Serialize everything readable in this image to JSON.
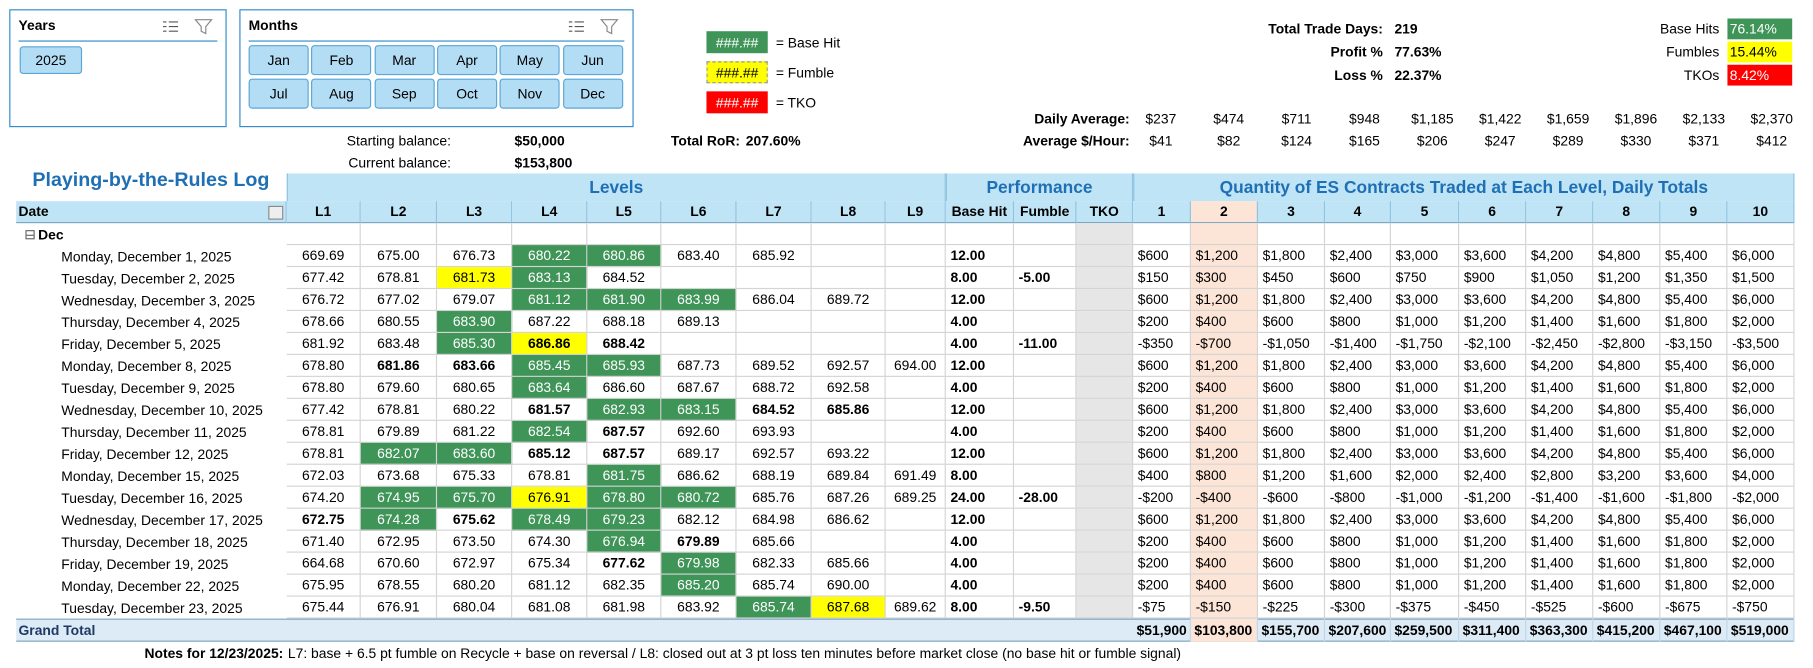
{
  "slicers": {
    "years": {
      "title": "Years",
      "items": [
        "2025"
      ]
    },
    "months": {
      "title": "Months",
      "items": [
        "Jan",
        "Feb",
        "Mar",
        "Apr",
        "May",
        "Jun",
        "Jul",
        "Aug",
        "Sep",
        "Oct",
        "Nov",
        "Dec"
      ]
    }
  },
  "legend": [
    {
      "sample": "###.##",
      "label": "= Base Hit"
    },
    {
      "sample": "###.##",
      "label": "= Fumble"
    },
    {
      "sample": "###.##",
      "label": "= TKO"
    }
  ],
  "balances": {
    "starting_label": "Starting balance:",
    "starting": "$50,000",
    "current_label": "Current balance:",
    "current": "$153,800",
    "ror_label": "Total RoR:",
    "ror": "207.60%"
  },
  "stats": [
    [
      "Total Trade Days:",
      "219"
    ],
    [
      "Profit %",
      "77.63%"
    ],
    [
      "Loss %",
      "22.37%"
    ]
  ],
  "rates": [
    [
      "Base Hits",
      "76.14%"
    ],
    [
      "Fumbles",
      "15.44%"
    ],
    [
      "TKOs",
      "8.42%"
    ]
  ],
  "averages": [
    {
      "label": "Daily Average:",
      "values": [
        "$237",
        "$474",
        "$711",
        "$948",
        "$1,185",
        "$1,422",
        "$1,659",
        "$1,896",
        "$2,133",
        "$2,370"
      ]
    },
    {
      "label": "Average $/Hour:",
      "values": [
        "$41",
        "$82",
        "$124",
        "$165",
        "$206",
        "$247",
        "$289",
        "$330",
        "$371",
        "$412"
      ]
    }
  ],
  "table": {
    "title": "Playing-by-the-Rules Log",
    "groups": [
      "Levels",
      "Performance",
      "Quantity of ES Contracts Traded at Each Level, Daily Totals"
    ],
    "columns": [
      "Date",
      "L1",
      "L2",
      "L3",
      "L4",
      "L5",
      "L6",
      "L7",
      "L8",
      "L9",
      "Base Hit",
      "Fumble",
      "TKO",
      "1",
      "2",
      "3",
      "4",
      "5",
      "6",
      "7",
      "8",
      "9",
      "10"
    ],
    "group_row": "Dec",
    "rows": [
      [
        "Monday, December 1, 2025",
        "669.69",
        "675.00",
        "676.73",
        "680.22",
        "680.86",
        "683.40",
        "685.92",
        null,
        null,
        "12.00",
        null,
        null,
        "$600",
        "$1,200",
        "$1,800",
        "$2,400",
        "$3,000",
        "$3,600",
        "$4,200",
        "$4,800",
        "$5,400",
        "$6,000"
      ],
      [
        "Tuesday, December 2, 2025",
        "677.42",
        "678.81",
        "681.73",
        "683.13",
        "684.52",
        null,
        null,
        null,
        null,
        "8.00",
        "-5.00",
        null,
        "$150",
        "$300",
        "$450",
        "$600",
        "$750",
        "$900",
        "$1,050",
        "$1,200",
        "$1,350",
        "$1,500"
      ],
      [
        "Wednesday, December 3, 2025",
        "676.72",
        "677.02",
        "679.07",
        "681.12",
        "681.90",
        "683.99",
        "686.04",
        "689.72",
        null,
        "12.00",
        null,
        null,
        "$600",
        "$1,200",
        "$1,800",
        "$2,400",
        "$3,000",
        "$3,600",
        "$4,200",
        "$4,800",
        "$5,400",
        "$6,000"
      ],
      [
        "Thursday, December 4, 2025",
        "678.66",
        "680.55",
        "683.90",
        "687.22",
        "688.18",
        "689.13",
        null,
        null,
        null,
        "4.00",
        null,
        null,
        "$200",
        "$400",
        "$600",
        "$800",
        "$1,000",
        "$1,200",
        "$1,400",
        "$1,600",
        "$1,800",
        "$2,000"
      ],
      [
        "Friday, December 5, 2025",
        "681.92",
        "683.48",
        "685.30",
        "686.86",
        "688.42",
        null,
        null,
        null,
        null,
        "4.00",
        "-11.00",
        null,
        "-$350",
        "-$700",
        "-$1,050",
        "-$1,400",
        "-$1,750",
        "-$2,100",
        "-$2,450",
        "-$2,800",
        "-$3,150",
        "-$3,500"
      ],
      [
        "Monday, December 8, 2025",
        "678.80",
        "681.86",
        "683.66",
        "685.45",
        "685.93",
        "687.73",
        "689.52",
        "692.57",
        "694.00",
        "12.00",
        null,
        null,
        "$600",
        "$1,200",
        "$1,800",
        "$2,400",
        "$3,000",
        "$3,600",
        "$4,200",
        "$4,800",
        "$5,400",
        "$6,000"
      ],
      [
        "Tuesday, December 9, 2025",
        "678.80",
        "679.60",
        "680.65",
        "683.64",
        "686.60",
        "687.67",
        "688.72",
        "692.58",
        null,
        "4.00",
        null,
        null,
        "$200",
        "$400",
        "$600",
        "$800",
        "$1,000",
        "$1,200",
        "$1,400",
        "$1,600",
        "$1,800",
        "$2,000"
      ],
      [
        "Wednesday, December 10, 2025",
        "677.42",
        "678.81",
        "680.22",
        "681.57",
        "682.93",
        "683.15",
        "684.52",
        "685.86",
        null,
        "12.00",
        null,
        null,
        "$600",
        "$1,200",
        "$1,800",
        "$2,400",
        "$3,000",
        "$3,600",
        "$4,200",
        "$4,800",
        "$5,400",
        "$6,000"
      ],
      [
        "Thursday, December 11, 2025",
        "678.81",
        "679.89",
        "681.22",
        "682.54",
        "687.57",
        "692.60",
        "693.93",
        null,
        null,
        "4.00",
        null,
        null,
        "$200",
        "$400",
        "$600",
        "$800",
        "$1,000",
        "$1,200",
        "$1,400",
        "$1,600",
        "$1,800",
        "$2,000"
      ],
      [
        "Friday, December 12, 2025",
        "678.81",
        "682.07",
        "683.60",
        "685.12",
        "687.57",
        "689.17",
        "692.57",
        "693.22",
        null,
        "12.00",
        null,
        null,
        "$600",
        "$1,200",
        "$1,800",
        "$2,400",
        "$3,000",
        "$3,600",
        "$4,200",
        "$4,800",
        "$5,400",
        "$6,000"
      ],
      [
        "Monday, December 15, 2025",
        "672.03",
        "673.68",
        "675.33",
        "678.81",
        "681.75",
        "686.62",
        "688.19",
        "689.84",
        "691.49",
        "8.00",
        null,
        null,
        "$400",
        "$800",
        "$1,200",
        "$1,600",
        "$2,000",
        "$2,400",
        "$2,800",
        "$3,200",
        "$3,600",
        "$4,000"
      ],
      [
        "Tuesday, December 16, 2025",
        "674.20",
        "674.95",
        "675.70",
        "676.91",
        "678.80",
        "680.72",
        "685.76",
        "687.26",
        "689.25",
        "24.00",
        "-28.00",
        null,
        "-$200",
        "-$400",
        "-$600",
        "-$800",
        "-$1,000",
        "-$1,200",
        "-$1,400",
        "-$1,600",
        "-$1,800",
        "-$2,000"
      ],
      [
        "Wednesday, December 17, 2025",
        "672.75",
        "674.28",
        "675.62",
        "678.49",
        "679.23",
        "682.12",
        "684.98",
        "686.62",
        null,
        "12.00",
        null,
        null,
        "$600",
        "$1,200",
        "$1,800",
        "$2,400",
        "$3,000",
        "$3,600",
        "$4,200",
        "$4,800",
        "$5,400",
        "$6,000"
      ],
      [
        "Thursday, December 18, 2025",
        "671.40",
        "672.95",
        "673.50",
        "674.30",
        "676.94",
        "679.89",
        "685.66",
        null,
        null,
        "4.00",
        null,
        null,
        "$200",
        "$400",
        "$600",
        "$800",
        "$1,000",
        "$1,200",
        "$1,400",
        "$1,600",
        "$1,800",
        "$2,000"
      ],
      [
        "Friday, December 19, 2025",
        "664.68",
        "670.60",
        "672.97",
        "675.34",
        "677.62",
        "679.98",
        "682.33",
        "685.66",
        null,
        "4.00",
        null,
        null,
        "$200",
        "$400",
        "$600",
        "$800",
        "$1,000",
        "$1,200",
        "$1,400",
        "$1,600",
        "$1,800",
        "$2,000"
      ],
      [
        "Monday, December 22, 2025",
        "675.95",
        "678.55",
        "680.20",
        "681.12",
        "682.35",
        "685.20",
        "685.74",
        "690.00",
        null,
        "4.00",
        null,
        null,
        "$200",
        "$400",
        "$600",
        "$800",
        "$1,000",
        "$1,200",
        "$1,400",
        "$1,600",
        "$1,800",
        "$2,000"
      ],
      [
        "Tuesday, December 23, 2025",
        "675.44",
        "676.91",
        "680.04",
        "681.08",
        "681.98",
        "683.92",
        "685.74",
        "687.68",
        "689.62",
        "8.00",
        "-9.50",
        null,
        "-$75",
        "-$150",
        "-$225",
        "-$300",
        "-$375",
        "-$450",
        "-$525",
        "-$600",
        "-$675",
        "-$750"
      ]
    ],
    "total_label": "Grand Total",
    "totals": [
      "$51,900",
      "$103,800",
      "$155,700",
      "$207,600",
      "$259,500",
      "$311,400",
      "$363,300",
      "$415,200",
      "$467,100",
      "$519,000"
    ]
  },
  "notes": {
    "label": "Notes for 12/23/2025:",
    "text": "L7: base + 6.5 pt fumble on Recycle + base on reversal / L8: closed out at 3 pt loss ten minutes before market close (no base hit or fumble signal)"
  }
}
